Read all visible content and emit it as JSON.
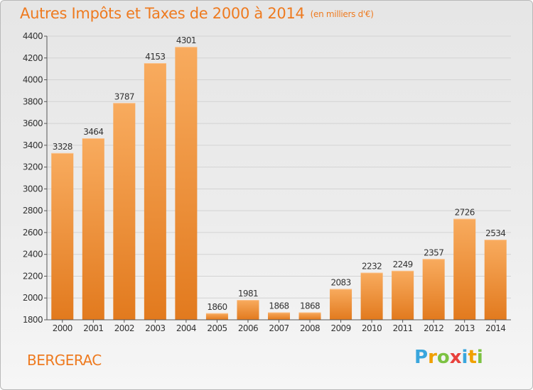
{
  "header": {
    "title": "Autres Impôts et Taxes de 2000 à 2014",
    "unit": "(en milliers d'€)"
  },
  "footer": {
    "city": "BERGERAC"
  },
  "logo": {
    "letters": [
      "P",
      "r",
      "o",
      "x",
      "i",
      "t",
      "i"
    ],
    "colors": [
      "#3aa6dd",
      "#f0a000",
      "#7cc242",
      "#e8413c",
      "#3aa6dd",
      "#f0a000",
      "#7cc242"
    ]
  },
  "colors": {
    "accent": "#ee7a1f",
    "bar_light": "#f7a85a",
    "bar_dark": "#e57d20"
  },
  "chart_data": {
    "type": "bar",
    "categories": [
      "2000",
      "2001",
      "2002",
      "2003",
      "2004",
      "2005",
      "2006",
      "2007",
      "2008",
      "2009",
      "2010",
      "2011",
      "2012",
      "2013",
      "2014"
    ],
    "values": [
      3328,
      3464,
      3787,
      4153,
      4301,
      1860,
      1981,
      1868,
      1868,
      2083,
      2232,
      2249,
      2357,
      2726,
      2534
    ],
    "title": "Autres Impôts et Taxes de 2000 à 2014",
    "subtitle": "(en milliers d'€)",
    "xlabel": "",
    "ylabel": "",
    "ylim": [
      1800,
      4400
    ],
    "yticks": [
      1800,
      2000,
      2200,
      2400,
      2600,
      2800,
      3000,
      3200,
      3400,
      3600,
      3800,
      4000,
      4200,
      4400
    ],
    "grid": true
  }
}
